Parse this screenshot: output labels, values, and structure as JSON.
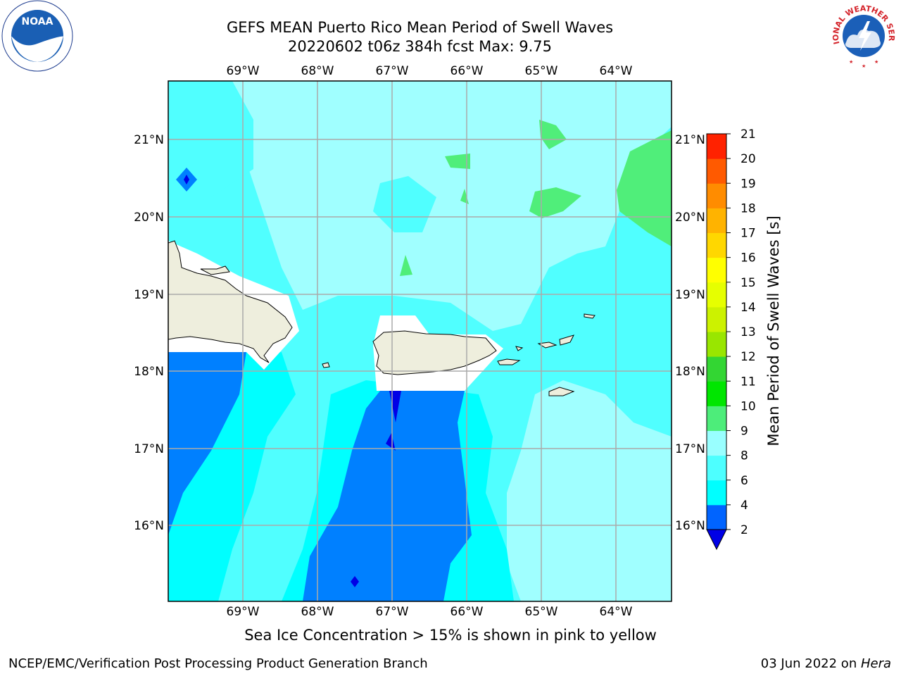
{
  "header": {
    "title_line1": "GEFS MEAN Puerto Rico Mean Period of Swell Waves",
    "title_line2": "20220602 t06z 384h fcst   Max: 9.75"
  },
  "map": {
    "lon_ticks": [
      "69°W",
      "68°W",
      "67°W",
      "66°W",
      "65°W",
      "64°W"
    ],
    "lat_ticks": [
      "21°N",
      "20°N",
      "19°N",
      "18°N",
      "17°N",
      "16°N"
    ]
  },
  "colorbar": {
    "label": "Mean Period of Swell Waves [s]",
    "levels": [
      "2",
      "4",
      "6",
      "8",
      "9",
      "10",
      "11",
      "12",
      "13",
      "14",
      "15",
      "16",
      "17",
      "18",
      "19",
      "20",
      "21"
    ],
    "colors": [
      "#0064ff",
      "#00ffff",
      "#4dffff",
      "#99ffff",
      "#4ded7a",
      "#00e600",
      "#33d633",
      "#99e600",
      "#ccf200",
      "#e6ff00",
      "#ffff00",
      "#ffd700",
      "#ffb300",
      "#ff8c00",
      "#ff5a00",
      "#ff2200"
    ],
    "under_color": "#0000e6"
  },
  "map_colors": {
    "c_dark_blue": "#0000e6",
    "c_blue": "#0080ff",
    "c_cyan": "#00ffff",
    "c_light_cyan": "#50ffff",
    "c_pale_cyan": "#a0ffff",
    "c_green": "#50ee7a",
    "land": "#eeeedd"
  },
  "subtitle": "Sea Ice Concentration > 15% is shown in pink to yellow",
  "footer": {
    "left": "NCEP/EMC/Verification Post Processing Product Generation Branch",
    "right_date": "03 Jun 2022 on ",
    "right_host": "Hera"
  },
  "logos": {
    "noaa_text": "NOAA",
    "nws_text": "NATIONAL WEATHER SERVICE"
  }
}
